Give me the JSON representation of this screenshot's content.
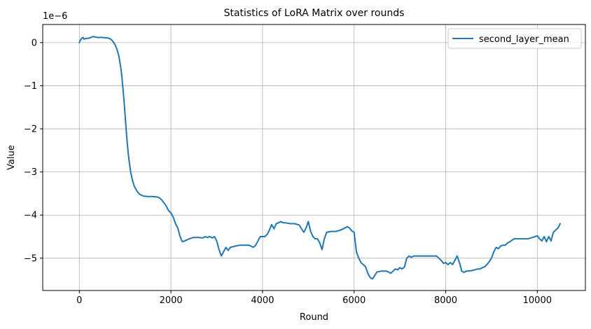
{
  "chart_data": {
    "type": "line",
    "title": "Statistics of LoRA Matrix over rounds",
    "xlabel": "Round",
    "ylabel": "Value",
    "offset_text": "1e−6",
    "xlim": [
      -800,
      11050
    ],
    "ylim": [
      -5.75,
      0.42
    ],
    "xticks": [
      0,
      2000,
      4000,
      6000,
      8000,
      10000
    ],
    "xtick_labels": [
      "0",
      "2000",
      "4000",
      "6000",
      "8000",
      "10000"
    ],
    "yticks": [
      0,
      -1,
      -2,
      -3,
      -4,
      -5
    ],
    "ytick_labels": [
      "0",
      "−1",
      "−2",
      "−3",
      "−4",
      "−5"
    ],
    "grid": true,
    "legend": {
      "position": "top-right",
      "entries": [
        "second_layer_mean"
      ]
    },
    "series": [
      {
        "name": "second_layer_mean",
        "color": "#1f77b4",
        "x": [
          0,
          20,
          50,
          80,
          100,
          150,
          200,
          250,
          300,
          350,
          400,
          500,
          600,
          650,
          700,
          750,
          780,
          820,
          860,
          900,
          930,
          960,
          990,
          1010,
          1040,
          1080,
          1120,
          1160,
          1200,
          1260,
          1320,
          1400,
          1500,
          1600,
          1700,
          1750,
          1800,
          1850,
          1900,
          1950,
          2000,
          2050,
          2100,
          2150,
          2200,
          2250,
          2300,
          2400,
          2500,
          2600,
          2700,
          2750,
          2800,
          2850,
          2900,
          2950,
          3000,
          3050,
          3100,
          3150,
          3200,
          3250,
          3300,
          3400,
          3500,
          3600,
          3700,
          3750,
          3800,
          3850,
          3900,
          3950,
          4000,
          4050,
          4100,
          4150,
          4200,
          4250,
          4300,
          4350,
          4400,
          4450,
          4500,
          4600,
          4700,
          4800,
          4900,
          4950,
          5000,
          5050,
          5100,
          5150,
          5200,
          5250,
          5300,
          5350,
          5400,
          5500,
          5600,
          5700,
          5800,
          5850,
          5900,
          5950,
          6000,
          6050,
          6100,
          6150,
          6200,
          6250,
          6300,
          6350,
          6400,
          6450,
          6500,
          6600,
          6700,
          6750,
          6800,
          6850,
          6900,
          6950,
          7000,
          7050,
          7100,
          7150,
          7200,
          7250,
          7300,
          7400,
          7500,
          7600,
          7700,
          7800,
          7850,
          7900,
          7950,
          8000,
          8050,
          8100,
          8150,
          8200,
          8250,
          8300,
          8350,
          8400,
          8450,
          8500,
          8600,
          8700,
          8750,
          8800,
          8850,
          8900,
          8950,
          9000,
          9050,
          9100,
          9150,
          9200,
          9250,
          9300,
          9350,
          9400,
          9450,
          9500,
          9600,
          9700,
          9800,
          9900,
          9950,
          10000,
          10050,
          10100,
          10150,
          10200,
          10250,
          10300,
          10350,
          10400,
          10450,
          10500
        ],
        "y": [
          0.0,
          0.05,
          0.1,
          0.12,
          0.08,
          0.1,
          0.1,
          0.12,
          0.14,
          0.13,
          0.12,
          0.12,
          0.11,
          0.1,
          0.07,
          0.0,
          -0.05,
          -0.15,
          -0.3,
          -0.55,
          -0.8,
          -1.15,
          -1.55,
          -1.85,
          -2.25,
          -2.7,
          -3.0,
          -3.2,
          -3.33,
          -3.45,
          -3.52,
          -3.56,
          -3.57,
          -3.57,
          -3.58,
          -3.6,
          -3.65,
          -3.72,
          -3.8,
          -3.9,
          -3.95,
          -4.05,
          -4.2,
          -4.3,
          -4.5,
          -4.62,
          -4.6,
          -4.55,
          -4.52,
          -4.52,
          -4.53,
          -4.5,
          -4.52,
          -4.5,
          -4.53,
          -4.5,
          -4.6,
          -4.8,
          -4.95,
          -4.85,
          -4.75,
          -4.82,
          -4.75,
          -4.72,
          -4.7,
          -4.7,
          -4.7,
          -4.72,
          -4.75,
          -4.7,
          -4.6,
          -4.5,
          -4.5,
          -4.5,
          -4.45,
          -4.35,
          -4.22,
          -4.32,
          -4.2,
          -4.18,
          -4.15,
          -4.18,
          -4.18,
          -4.2,
          -4.2,
          -4.23,
          -4.4,
          -4.3,
          -4.15,
          -4.38,
          -4.5,
          -4.55,
          -4.55,
          -4.65,
          -4.8,
          -4.55,
          -4.4,
          -4.38,
          -4.38,
          -4.35,
          -4.3,
          -4.27,
          -4.3,
          -4.37,
          -4.4,
          -4.85,
          -5.0,
          -5.1,
          -5.15,
          -5.2,
          -5.35,
          -5.45,
          -5.48,
          -5.4,
          -5.32,
          -5.3,
          -5.3,
          -5.32,
          -5.35,
          -5.3,
          -5.25,
          -5.27,
          -5.22,
          -5.25,
          -5.2,
          -5.0,
          -4.95,
          -4.98,
          -4.95,
          -4.95,
          -4.95,
          -4.95,
          -4.95,
          -4.95,
          -5.0,
          -5.05,
          -5.12,
          -5.1,
          -5.15,
          -5.1,
          -5.15,
          -5.05,
          -4.95,
          -5.1,
          -5.3,
          -5.33,
          -5.3,
          -5.3,
          -5.28,
          -5.25,
          -5.25,
          -5.22,
          -5.2,
          -5.15,
          -5.08,
          -5.0,
          -4.85,
          -4.75,
          -4.78,
          -4.72,
          -4.7,
          -4.7,
          -4.65,
          -4.62,
          -4.58,
          -4.55,
          -4.55,
          -4.55,
          -4.55,
          -4.52,
          -4.5,
          -4.48,
          -4.55,
          -4.6,
          -4.5,
          -4.62,
          -4.5,
          -4.6,
          -4.4,
          -4.35,
          -4.3,
          -4.2
        ]
      }
    ]
  }
}
